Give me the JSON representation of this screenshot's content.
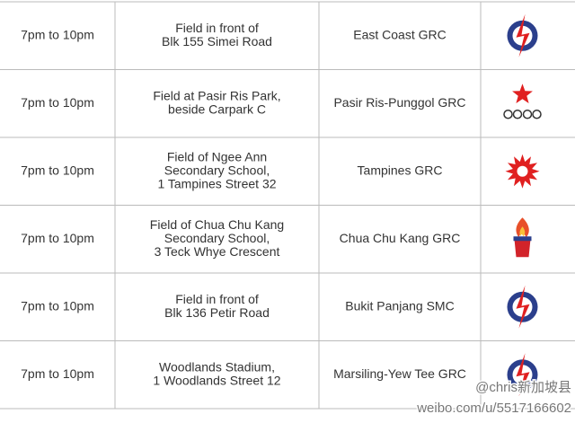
{
  "table": {
    "rows": [
      {
        "time": "7pm to 10pm",
        "venue": [
          "Field in front of",
          "Blk 155 Simei Road"
        ],
        "constituency": "East Coast GRC"
      },
      {
        "time": "7pm to 10pm",
        "venue": [
          "Field at Pasir Ris Park,",
          "beside Carpark C"
        ],
        "constituency": "Pasir Ris-Punggol GRC"
      },
      {
        "time": "7pm to 10pm",
        "venue": [
          "Field of Ngee Ann",
          "Secondary School,",
          "1 Tampines Street 32"
        ],
        "constituency": "Tampines GRC"
      },
      {
        "time": "7pm to 10pm",
        "venue": [
          "Field of Chua Chu Kang",
          "Secondary School,",
          "3 Teck Whye Crescent"
        ],
        "constituency": "Chua Chu Kang GRC"
      },
      {
        "time": "7pm to 10pm",
        "venue": [
          "Field in front of",
          "Blk 136 Petir Road"
        ],
        "constituency": "Bukit Panjang SMC"
      },
      {
        "time": "7pm to 10pm",
        "venue": [
          "Woodlands Stadium,",
          "1 Woodlands Street 12"
        ],
        "constituency": "Marsiling-Yew Tee GRC"
      }
    ]
  },
  "watermark": {
    "handle": "@chris新加坡县",
    "url": "weibo.com/u/5517166602"
  }
}
